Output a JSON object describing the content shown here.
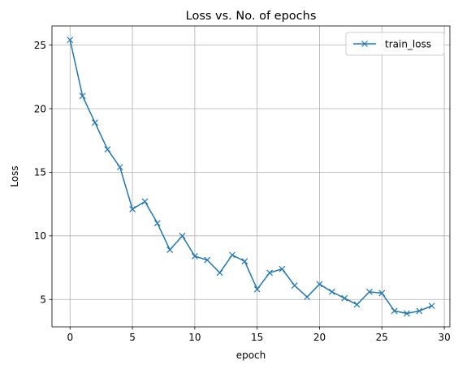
{
  "chart_data": {
    "type": "line",
    "title": "Loss vs. No. of epochs",
    "xlabel": "epoch",
    "ylabel": "Loss",
    "xlim": [
      -1.45,
      30.45
    ],
    "ylim": [
      2.85,
      26.5
    ],
    "xticks": [
      0,
      5,
      10,
      15,
      20,
      25,
      30
    ],
    "yticks": [
      5,
      10,
      15,
      20,
      25
    ],
    "grid": true,
    "legend_position": "top-right",
    "series": [
      {
        "name": "train_loss",
        "color": "#1f77b4",
        "marker": "x",
        "x": [
          0,
          1,
          2,
          3,
          4,
          5,
          6,
          7,
          8,
          9,
          10,
          11,
          12,
          13,
          14,
          15,
          16,
          17,
          18,
          19,
          20,
          21,
          22,
          23,
          24,
          25,
          26,
          27,
          28,
          29
        ],
        "y": [
          25.4,
          21.0,
          18.9,
          16.8,
          15.4,
          12.1,
          12.7,
          11.0,
          8.9,
          10.0,
          8.4,
          8.1,
          7.1,
          8.5,
          8.0,
          5.8,
          7.1,
          7.4,
          6.1,
          5.2,
          6.2,
          5.6,
          5.1,
          4.6,
          5.6,
          5.5,
          4.1,
          3.9,
          4.1,
          4.5
        ]
      }
    ]
  }
}
